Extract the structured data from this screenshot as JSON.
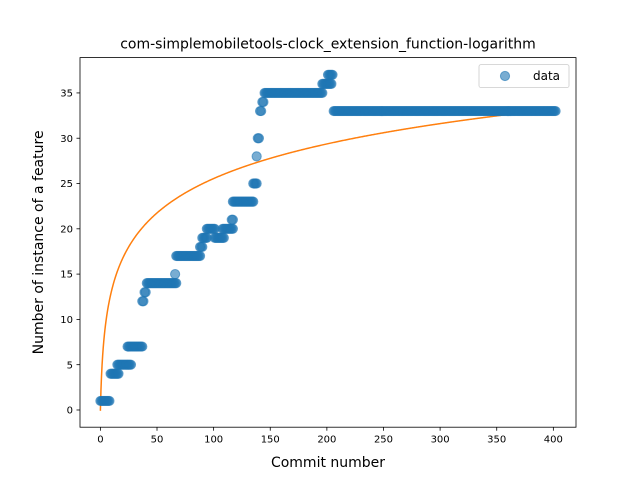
{
  "chart_data": {
    "type": "scatter",
    "title": "com-simplemobiletools-clock_extension_function-logarithm",
    "xlabel": "Commit number",
    "ylabel": "Number of instance of a feature",
    "xlim": [
      -18,
      420
    ],
    "ylim": [
      -1.9,
      38.9
    ],
    "xticks": [
      0,
      50,
      100,
      150,
      200,
      250,
      300,
      350,
      400
    ],
    "yticks": [
      0,
      5,
      10,
      15,
      20,
      25,
      30,
      35
    ],
    "grid": false,
    "legend": {
      "placement": "top-right",
      "entries": [
        "data"
      ]
    },
    "series": [
      {
        "name": "data",
        "style": "markers",
        "color": "#1f77b4",
        "segments": [
          {
            "x": [
              0,
              8
            ],
            "y": 1
          },
          {
            "x": [
              9,
              16
            ],
            "y": 4
          },
          {
            "x": [
              15,
              27
            ],
            "y": 5
          },
          {
            "x": [
              24,
              37
            ],
            "y": 7
          },
          {
            "x": [
              37,
              38
            ],
            "y": 12
          },
          {
            "x": [
              39,
              40
            ],
            "y": 13
          },
          {
            "x": [
              41,
              67
            ],
            "y": 14
          },
          {
            "x": [
              66,
              66
            ],
            "y": 15
          },
          {
            "x": [
              67,
              88
            ],
            "y": 17
          },
          {
            "x": [
              88,
              90
            ],
            "y": 18
          },
          {
            "x": [
              90,
              94
            ],
            "y": 19
          },
          {
            "x": [
              94,
              101
            ],
            "y": 20
          },
          {
            "x": [
              101,
              109
            ],
            "y": 19
          },
          {
            "x": [
              108,
              117
            ],
            "y": 20
          },
          {
            "x": [
              116,
              117
            ],
            "y": 21
          },
          {
            "x": [
              117,
              135
            ],
            "y": 23
          },
          {
            "x": [
              135,
              138
            ],
            "y": 25
          },
          {
            "x": [
              138,
              138
            ],
            "y": 28
          },
          {
            "x": [
              139,
              140
            ],
            "y": 30
          },
          {
            "x": [
              141,
              142
            ],
            "y": 33
          },
          {
            "x": [
              143,
              144
            ],
            "y": 34
          },
          {
            "x": [
              145,
              196
            ],
            "y": 35
          },
          {
            "x": [
              196,
              204
            ],
            "y": 36
          },
          {
            "x": [
              201,
              205
            ],
            "y": 37
          },
          {
            "x": [
              206,
              402
            ],
            "y": 33
          }
        ]
      },
      {
        "name": "",
        "style": "line",
        "color": "#ff7f0e",
        "model": "logarithmic",
        "fit": {
          "a": 5.555,
          "b": -0.09,
          "offset": 1
        },
        "x_range": [
          0,
          402
        ]
      }
    ]
  }
}
